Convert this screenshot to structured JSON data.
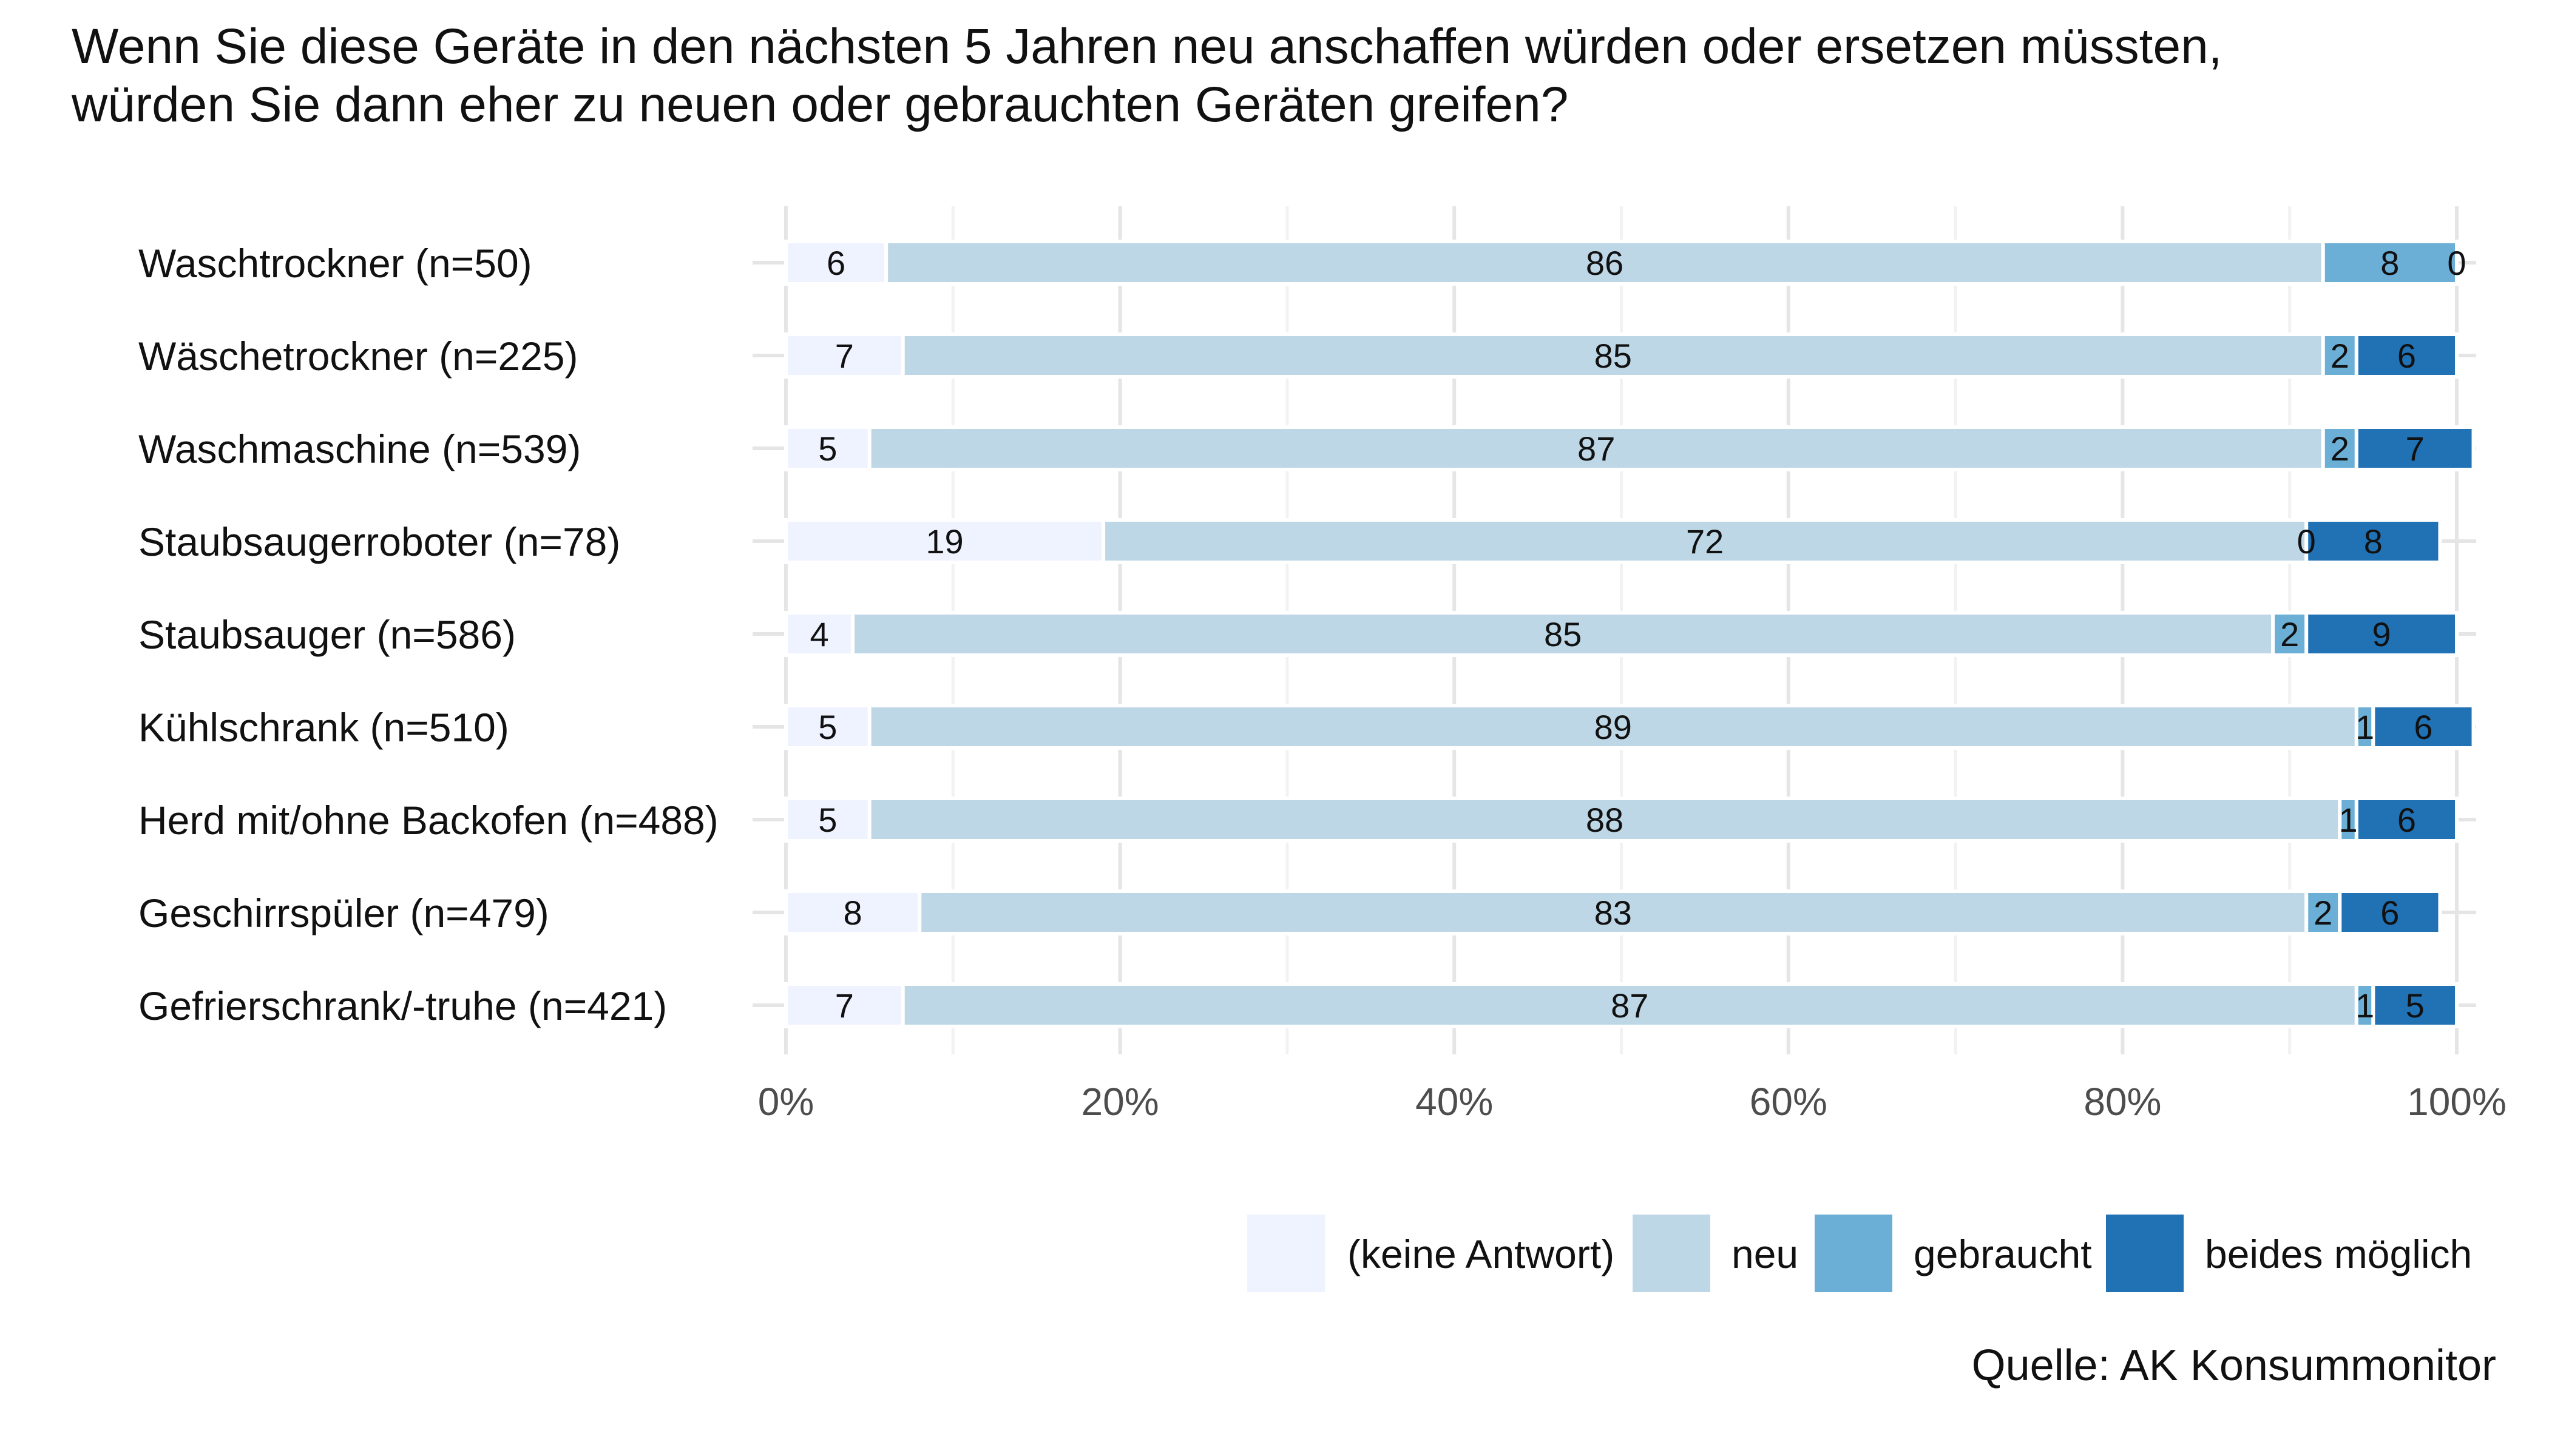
{
  "chart_data": {
    "type": "bar",
    "orientation": "horizontal",
    "stacked": true,
    "title_lines": [
      "Wenn Sie diese Geräte in den nächsten 5 Jahren neu anschaffen würden oder ersetzen müssten,",
      "würden Sie dann eher zu neuen oder gebrauchten Geräten greifen?"
    ],
    "categories": [
      "Waschtrockner (n=50)",
      "Wäschetrockner (n=225)",
      "Waschmaschine (n=539)",
      "Staubsaugerroboter (n=78)",
      "Staubsauger (n=586)",
      "Kühlschrank (n=510)",
      "Herd mit/ohne Backofen (n=488)",
      "Geschirrspüler (n=479)",
      "Gefrierschrank/-truhe (n=421)"
    ],
    "series": [
      {
        "name": "(keine Antwort)",
        "color": "#eff3ff",
        "values": [
          6,
          7,
          5,
          19,
          4,
          5,
          5,
          8,
          7
        ]
      },
      {
        "name": "neu",
        "color": "#bdd7e7",
        "values": [
          86,
          85,
          87,
          72,
          85,
          89,
          88,
          83,
          87
        ]
      },
      {
        "name": "gebraucht",
        "color": "#6baed6",
        "values": [
          8,
          2,
          2,
          0,
          2,
          1,
          1,
          2,
          1
        ]
      },
      {
        "name": "beides möglich",
        "color": "#2171b5",
        "values": [
          0,
          6,
          7,
          8,
          9,
          6,
          6,
          6,
          5
        ]
      }
    ],
    "xlim": [
      0,
      100
    ],
    "xticks": [
      0,
      20,
      40,
      60,
      80,
      100
    ],
    "xtick_labels": [
      "0%",
      "20%",
      "40%",
      "60%",
      "80%",
      "100%"
    ],
    "grid": true,
    "legend_position": "bottom-right",
    "source": "Quelle: AK Konsummonitor"
  }
}
